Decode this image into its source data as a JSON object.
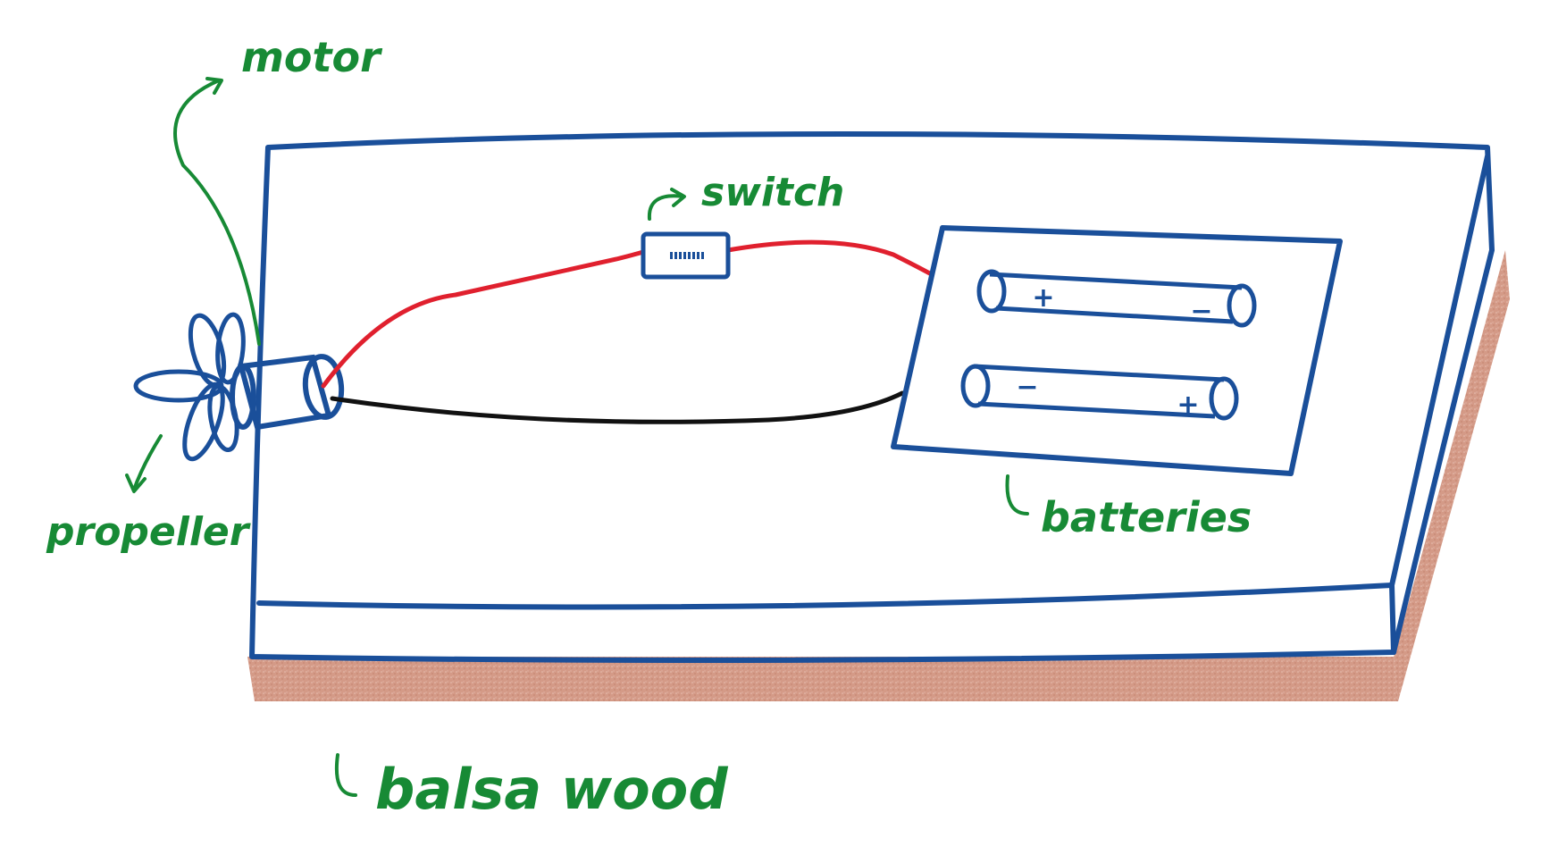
{
  "labels": {
    "motor": "motor",
    "switch": "switch",
    "propeller": "propeller",
    "batteries": "batteries",
    "base": "balsa wood"
  },
  "battery_signs": {
    "top_left": "+",
    "top_right": "−",
    "bottom_left": "−",
    "bottom_right": "+"
  },
  "colors": {
    "outline": "#1a4f9a",
    "label": "#178a35",
    "wire_positive": "#e0202e",
    "wire_negative": "#111111",
    "wood": "#d49a87"
  }
}
